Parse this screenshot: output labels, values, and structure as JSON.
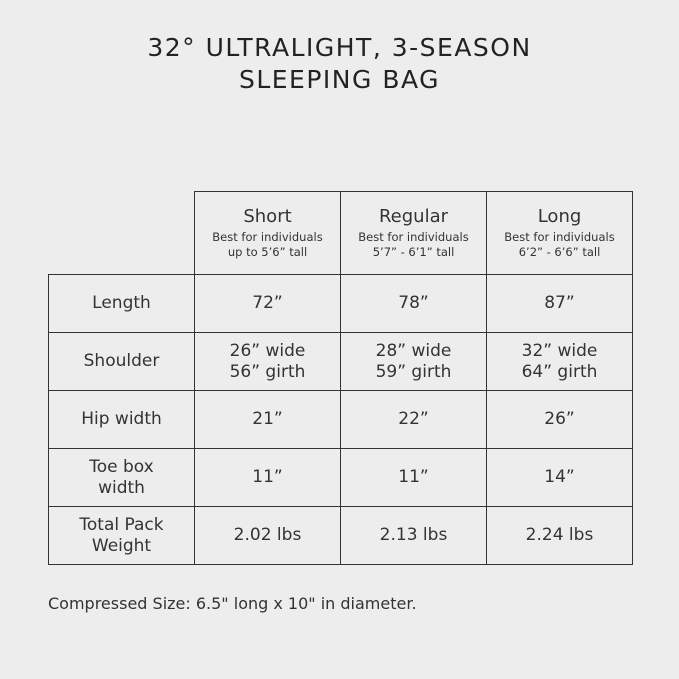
{
  "title_line1": "32° ULTRALIGHT, 3-SEASON",
  "title_line2": "SLEEPING BAG",
  "columns": [
    {
      "name": "Short",
      "desc1": "Best for individuals",
      "desc2": "up to 5’6” tall"
    },
    {
      "name": "Regular",
      "desc1": "Best for individuals",
      "desc2": "5’7” - 6’1” tall"
    },
    {
      "name": "Long",
      "desc1": "Best for individuals",
      "desc2": "6’2” - 6’6” tall"
    }
  ],
  "rows": [
    {
      "label1": "Length",
      "label2": "",
      "v": [
        [
          "72”",
          ""
        ],
        [
          "78”",
          ""
        ],
        [
          "87”",
          ""
        ]
      ]
    },
    {
      "label1": "Shoulder",
      "label2": "",
      "v": [
        [
          "26” wide",
          "56” girth"
        ],
        [
          "28” wide",
          "59” girth"
        ],
        [
          "32” wide",
          "64” girth"
        ]
      ]
    },
    {
      "label1": "Hip width",
      "label2": "",
      "v": [
        [
          "21”",
          ""
        ],
        [
          "22”",
          ""
        ],
        [
          "26”",
          ""
        ]
      ]
    },
    {
      "label1": "Toe box",
      "label2": "width",
      "v": [
        [
          "11”",
          ""
        ],
        [
          "11”",
          ""
        ],
        [
          "14”",
          ""
        ]
      ]
    },
    {
      "label1": "Total Pack",
      "label2": "Weight",
      "v": [
        [
          "2.02 lbs",
          ""
        ],
        [
          "2.13 lbs",
          ""
        ],
        [
          "2.24 lbs",
          ""
        ]
      ]
    }
  ],
  "note": "Compressed Size: 6.5\" long x 10\" in diameter."
}
